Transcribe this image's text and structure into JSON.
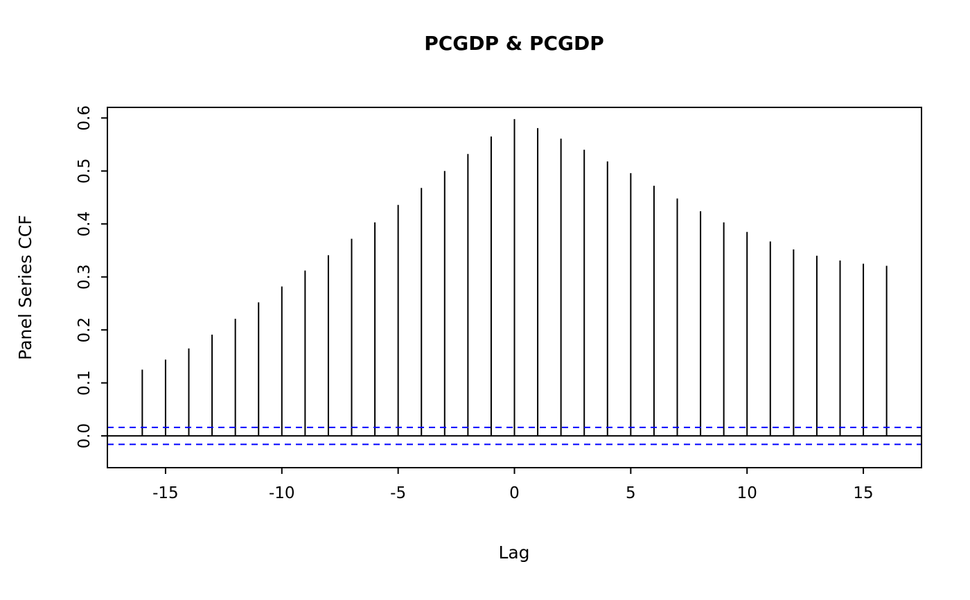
{
  "chart_data": {
    "type": "bar",
    "style": "ccf-spike",
    "title": "PCGDP & PCGDP",
    "xlabel": "Lag",
    "ylabel": "Panel Series CCF",
    "x": [
      -16,
      -15,
      -14,
      -13,
      -12,
      -11,
      -10,
      -9,
      -8,
      -7,
      -6,
      -5,
      -4,
      -3,
      -2,
      -1,
      0,
      1,
      2,
      3,
      4,
      5,
      6,
      7,
      8,
      9,
      10,
      11,
      12,
      13,
      14,
      15,
      16
    ],
    "values": [
      0.125,
      0.144,
      0.165,
      0.191,
      0.221,
      0.252,
      0.282,
      0.312,
      0.341,
      0.372,
      0.403,
      0.436,
      0.468,
      0.5,
      0.532,
      0.565,
      0.598,
      0.581,
      0.561,
      0.54,
      0.518,
      0.496,
      0.472,
      0.448,
      0.424,
      0.403,
      0.385,
      0.367,
      0.352,
      0.34,
      0.331,
      0.325,
      0.321
    ],
    "conf_int_upper": 0.016,
    "conf_int_lower": -0.016,
    "zero_line": 0,
    "xlim": [
      -17.5,
      17.5
    ],
    "ylim": [
      -0.06,
      0.62
    ],
    "x_ticks": [
      -15,
      -10,
      -5,
      0,
      5,
      10,
      15
    ],
    "x_tick_labels": [
      "-15",
      "-10",
      "-5",
      "0",
      "5",
      "10",
      "15"
    ],
    "y_ticks": [
      0.0,
      0.1,
      0.2,
      0.3,
      0.4,
      0.5,
      0.6
    ],
    "y_tick_labels": [
      "0.0",
      "0.1",
      "0.2",
      "0.3",
      "0.4",
      "0.5",
      "0.6"
    ],
    "grid": false,
    "legend": "none",
    "colors": {
      "spike": "#000000",
      "box": "#000000",
      "conf_band": "#0000ff",
      "background": "#ffffff"
    }
  }
}
